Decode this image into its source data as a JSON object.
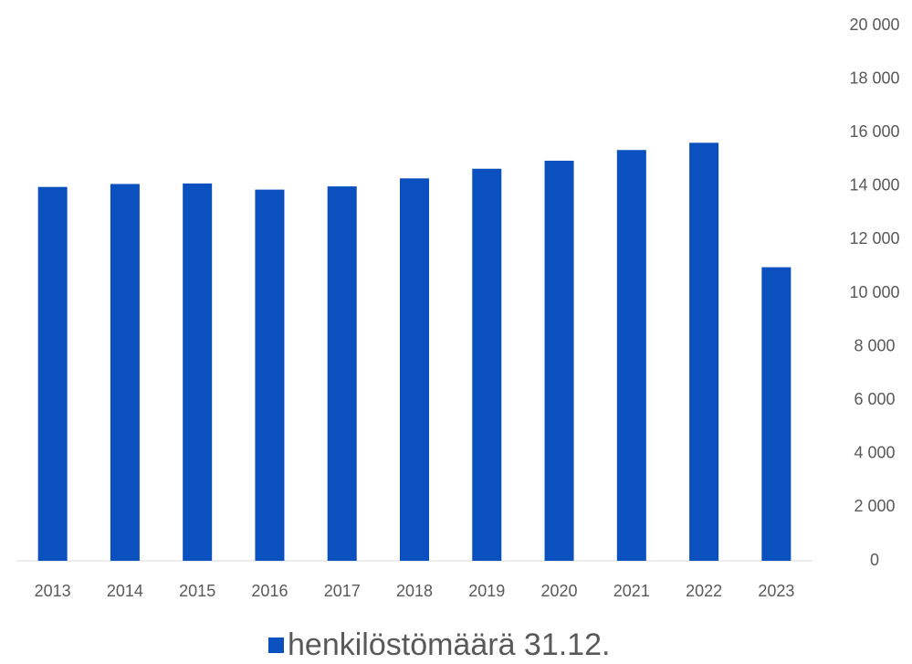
{
  "chart_data": {
    "type": "bar",
    "categories": [
      "2013",
      "2014",
      "2015",
      "2016",
      "2017",
      "2018",
      "2019",
      "2020",
      "2021",
      "2022",
      "2023"
    ],
    "series": [
      {
        "name": "henkilöstömäärä 31.12.",
        "color": "#0a50be",
        "values": [
          13970,
          14080,
          14100,
          13870,
          13990,
          14290,
          14650,
          14950,
          15350,
          15620,
          10970
        ]
      }
    ],
    "ylim": [
      0,
      20000
    ],
    "yticks": [
      0,
      {
        "value": 2000,
        "label": "2 000"
      },
      {
        "value": 4000,
        "label": "4 000"
      },
      {
        "value": 6000,
        "label": "6 000"
      },
      {
        "value": 8000,
        "label": "8 000"
      },
      {
        "value": 10000,
        "label": "10 000"
      },
      {
        "value": 12000,
        "label": "12 000"
      },
      {
        "value": 14000,
        "label": "14 000"
      },
      {
        "value": 16000,
        "label": "16 000"
      },
      {
        "value": 18000,
        "label": "18 000"
      },
      {
        "value": 20000,
        "label": "20 000"
      }
    ],
    "y_axis_side": "right",
    "legend": "bottom"
  }
}
